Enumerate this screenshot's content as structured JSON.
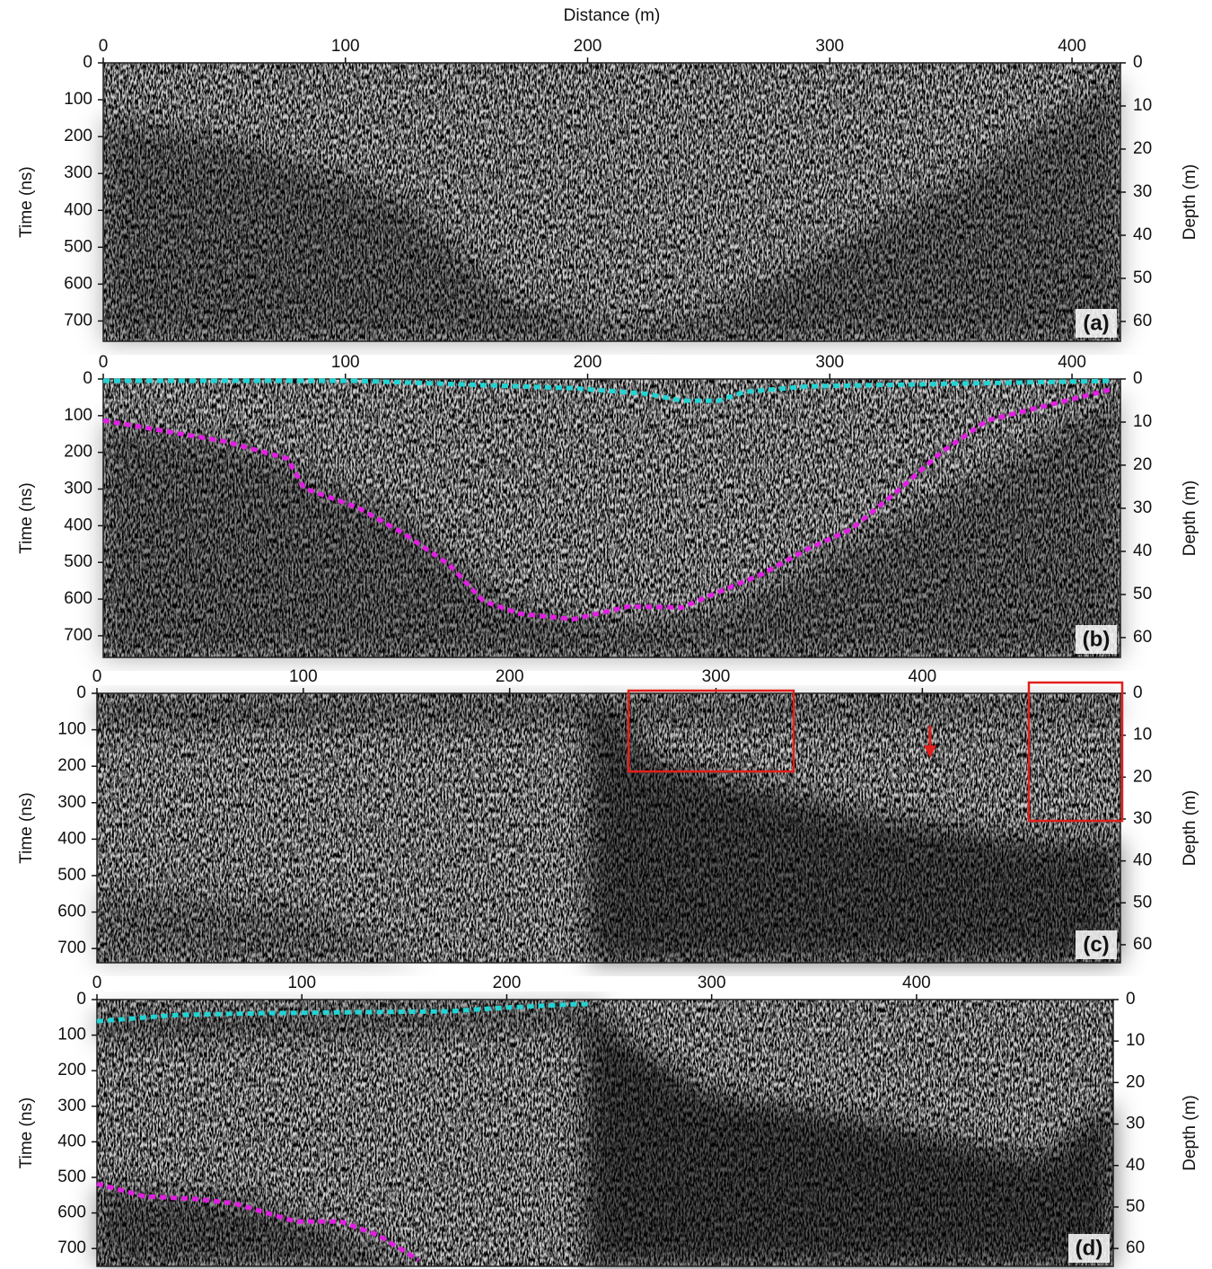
{
  "chart_data": [
    {
      "type": "radargram",
      "xlabel": "Distance (m)",
      "ylabel": "Time (ns)",
      "y2label": "Depth (m)",
      "panel_label": "(a)",
      "xlim": [
        0,
        420
      ],
      "xticks": [
        0,
        100,
        200,
        300,
        400
      ],
      "ylim": [
        0,
        755
      ],
      "yticks": [
        0,
        100,
        200,
        300,
        400,
        500,
        600,
        700
      ],
      "y_inverted": true,
      "y2lim": [
        0,
        64.6
      ],
      "y2ticks": [
        0,
        10,
        20,
        30,
        40,
        50,
        60
      ],
      "series": []
    },
    {
      "type": "radargram",
      "ylabel": "Time (ns)",
      "y2label": "Depth (m)",
      "panel_label": "(b)",
      "xlim": [
        0,
        420
      ],
      "xticks": [
        0,
        100,
        200,
        300,
        400
      ],
      "ylim": [
        0,
        759
      ],
      "yticks": [
        0,
        100,
        200,
        300,
        400,
        500,
        600,
        700
      ],
      "y_inverted": true,
      "y2lim": [
        0,
        64.6
      ],
      "y2ticks": [
        0,
        10,
        20,
        30,
        40,
        50,
        60
      ],
      "series": [
        {
          "color": "#22d3d3",
          "x": [
            0,
            105,
            194,
            224,
            239,
            254,
            265,
            291,
            417
          ],
          "values": [
            5,
            5,
            25,
            40,
            59,
            59,
            35,
            20,
            5
          ]
        },
        {
          "color": "#e020e0",
          "x": [
            0,
            50,
            76,
            83,
            105,
            124,
            143,
            157,
            172,
            194,
            217,
            239,
            254,
            272,
            291,
            309,
            328,
            346,
            365,
            417
          ],
          "values": [
            113,
            170,
            217,
            298,
            350,
            421,
            507,
            606,
            640,
            655,
            620,
            623,
            581,
            532,
            463,
            409,
            305,
            200,
            113,
            27
          ]
        }
      ]
    },
    {
      "type": "radargram",
      "ylabel": "Time (ns)",
      "y2label": "Depth (m)",
      "panel_label": "(c)",
      "xlim": [
        0,
        496
      ],
      "xticks": [
        0,
        100,
        200,
        300,
        400
      ],
      "ylim": [
        0,
        739
      ],
      "yticks": [
        0,
        100,
        200,
        300,
        400,
        500,
        600,
        700
      ],
      "y_inverted": true,
      "y2lim": [
        0,
        64.3
      ],
      "y2ticks": [
        0,
        10,
        20,
        30,
        40,
        50,
        60
      ],
      "series": []
    },
    {
      "type": "radargram",
      "ylabel": "Time (ns)",
      "y2label": "Depth (m)",
      "panel_label": "(d)",
      "xlim": [
        0,
        496
      ],
      "xticks": [
        0,
        100,
        200,
        300,
        400
      ],
      "ylim": [
        0,
        750
      ],
      "yticks": [
        0,
        100,
        200,
        300,
        400,
        500,
        600,
        700
      ],
      "y_inverted": true,
      "y2lim": [
        0,
        64.3
      ],
      "y2ticks": [
        0,
        10,
        20,
        30,
        40,
        50,
        60
      ],
      "series": [
        {
          "color": "#22d3d3",
          "x": [
            0,
            40,
            84,
            172,
            198,
            233,
            240
          ],
          "values": [
            61,
            43,
            38,
            33,
            23,
            13,
            13
          ]
        },
        {
          "color": "#e020e0",
          "x": [
            0,
            23,
            49,
            67,
            97,
            119,
            137,
            157
          ],
          "values": [
            518,
            553,
            561,
            573,
            624,
            624,
            662,
            732
          ]
        }
      ]
    }
  ]
}
